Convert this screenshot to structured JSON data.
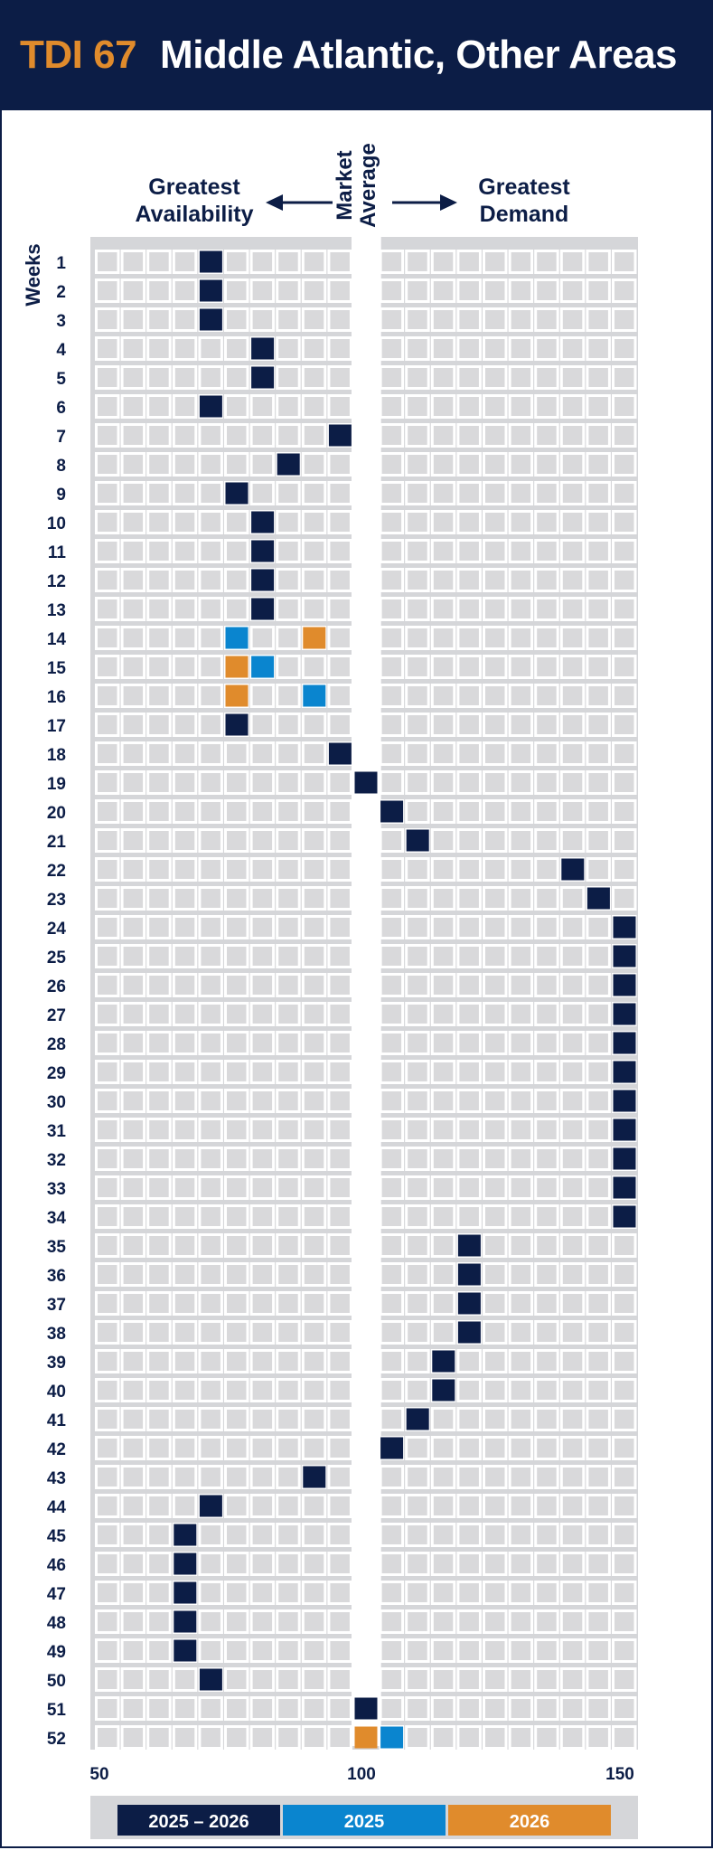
{
  "header": {
    "code": "TDI 67",
    "region": "Middle Atlantic, Other Areas"
  },
  "colors": {
    "navy": "#0c1d46",
    "blue": "#0a85cf",
    "orange": "#e08b2c",
    "cell": "#d9d9db"
  },
  "chart_data": {
    "type": "heatmap",
    "left_label": [
      "Greatest",
      "Availability"
    ],
    "center_label": [
      "Market",
      "Average"
    ],
    "right_label": [
      "Greatest",
      "Demand"
    ],
    "ylabel": "Weeks",
    "xlim": [
      50,
      150
    ],
    "xticks": [
      "50",
      "100",
      "150"
    ],
    "weeks": [
      "1",
      "2",
      "3",
      "4",
      "5",
      "6",
      "7",
      "8",
      "9",
      "10",
      "11",
      "12",
      "13",
      "14",
      "15",
      "16",
      "17",
      "18",
      "19",
      "20",
      "21",
      "22",
      "23",
      "24",
      "25",
      "26",
      "27",
      "28",
      "29",
      "30",
      "31",
      "32",
      "33",
      "34",
      "35",
      "36",
      "37",
      "38",
      "39",
      "40",
      "41",
      "42",
      "43",
      "44",
      "45",
      "46",
      "47",
      "48",
      "49",
      "50",
      "51",
      "52"
    ],
    "legend": [
      {
        "name": "2025 – 2026",
        "color": "#0c1d46"
      },
      {
        "name": "2025",
        "color": "#0a85cf"
      },
      {
        "name": "2026",
        "color": "#e08b2c"
      }
    ],
    "series": [
      {
        "name": "2025 – 2026",
        "color": "#0c1d46",
        "points": [
          [
            1,
            70
          ],
          [
            2,
            70
          ],
          [
            3,
            70
          ],
          [
            4,
            80
          ],
          [
            5,
            80
          ],
          [
            6,
            70
          ],
          [
            7,
            95
          ],
          [
            8,
            85
          ],
          [
            9,
            75
          ],
          [
            10,
            80
          ],
          [
            11,
            80
          ],
          [
            12,
            80
          ],
          [
            13,
            80
          ],
          [
            17,
            75
          ],
          [
            18,
            95
          ],
          [
            19,
            100
          ],
          [
            20,
            105
          ],
          [
            21,
            110
          ],
          [
            22,
            140
          ],
          [
            23,
            145
          ],
          [
            24,
            150
          ],
          [
            25,
            150
          ],
          [
            26,
            150
          ],
          [
            27,
            150
          ],
          [
            28,
            150
          ],
          [
            29,
            150
          ],
          [
            30,
            150
          ],
          [
            31,
            150
          ],
          [
            32,
            150
          ],
          [
            33,
            150
          ],
          [
            34,
            150
          ],
          [
            35,
            120
          ],
          [
            36,
            120
          ],
          [
            37,
            120
          ],
          [
            38,
            120
          ],
          [
            39,
            115
          ],
          [
            40,
            115
          ],
          [
            41,
            110
          ],
          [
            42,
            105
          ],
          [
            43,
            90
          ],
          [
            44,
            70
          ],
          [
            45,
            65
          ],
          [
            46,
            65
          ],
          [
            47,
            65
          ],
          [
            48,
            65
          ],
          [
            49,
            65
          ],
          [
            50,
            70
          ],
          [
            51,
            100
          ]
        ]
      },
      {
        "name": "2025",
        "color": "#0a85cf",
        "points": [
          [
            14,
            75
          ],
          [
            15,
            80
          ],
          [
            16,
            90
          ],
          [
            52,
            105
          ]
        ]
      },
      {
        "name": "2026",
        "color": "#e08b2c",
        "points": [
          [
            14,
            90
          ],
          [
            15,
            75
          ],
          [
            16,
            75
          ],
          [
            52,
            100
          ]
        ]
      }
    ]
  }
}
